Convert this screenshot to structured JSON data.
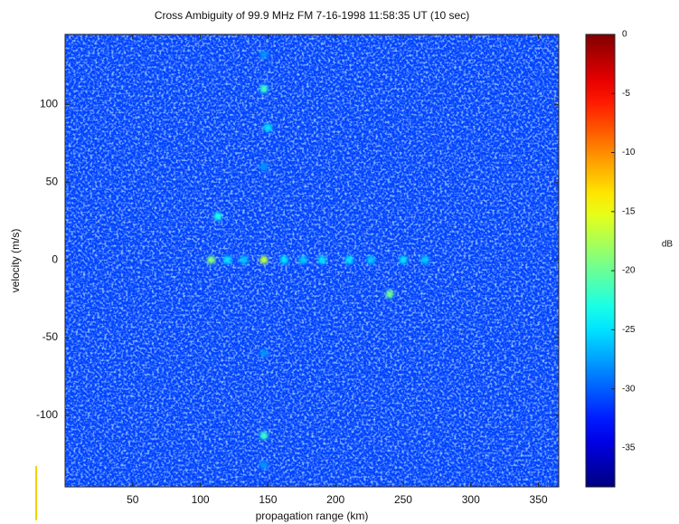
{
  "chart_data": {
    "type": "heatmap",
    "title": "Cross Ambiguity of 99.9 MHz FM  7-16-1998 11:58:35 UT (10 sec)",
    "x_label": "propagation range (km)",
    "y_label": "velocity (m/s)",
    "xlim": [
      0,
      365
    ],
    "ylim": [
      -146,
      145
    ],
    "xticks": [
      50,
      100,
      150,
      200,
      250,
      300,
      350
    ],
    "yticks": [
      -100,
      -50,
      0,
      50,
      100
    ],
    "colormap": "jet",
    "clim": [
      -38.3,
      0
    ],
    "colorbar_ticks": [
      0,
      -5,
      -10,
      -15,
      -20,
      -25,
      -30,
      -35
    ],
    "colorbar_label": "dB",
    "background_level": -31,
    "x": [
      147,
      150,
      113,
      147,
      108,
      240,
      147,
      120,
      132,
      162,
      176,
      190,
      210,
      226,
      250,
      266,
      147,
      147,
      147,
      147
    ],
    "y": [
      110,
      85,
      28,
      0,
      0,
      -22,
      -113,
      0,
      0,
      0,
      0,
      0,
      0,
      0,
      0,
      0,
      132,
      60,
      -60,
      -132
    ],
    "values": [
      -22,
      -25,
      -23,
      -17,
      -19,
      -20,
      -22,
      -25,
      -26,
      -25,
      -26,
      -25,
      -25,
      -26,
      -25,
      -26,
      -28,
      -28,
      -28,
      -28
    ]
  }
}
